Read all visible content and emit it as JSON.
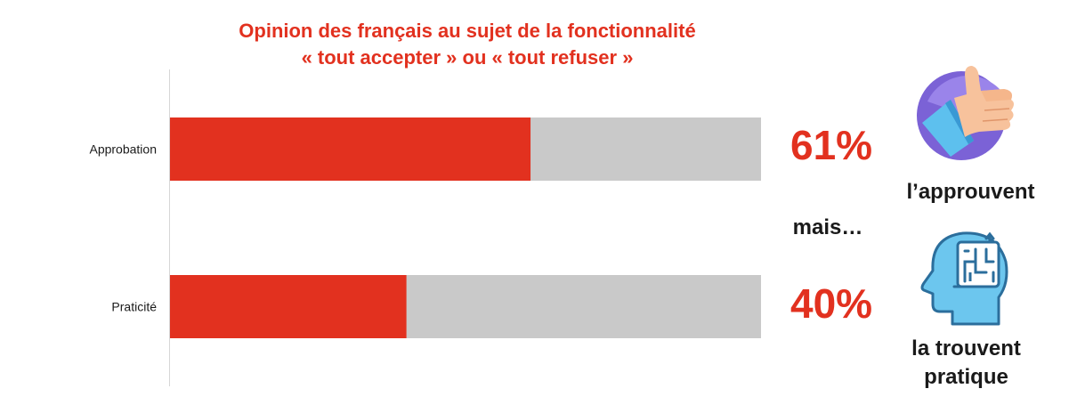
{
  "title_line1": "Opinion des français au sujet de la fonctionnalité",
  "title_line2": "« tout accepter » ou « tout refuser »",
  "colors": {
    "accent": "#e2311f",
    "bar_bg": "#c9c9c9",
    "text": "#1a1a1a"
  },
  "chart_data": {
    "type": "bar",
    "orientation": "horizontal",
    "categories": [
      "Approbation",
      "Praticité"
    ],
    "values": [
      61,
      40
    ],
    "xlim": [
      0,
      100
    ],
    "title": "Opinion des français au sujet de la fonctionnalité « tout accepter » ou « tout refuser »",
    "xlabel": "",
    "ylabel": ""
  },
  "right_panel": {
    "pct1": "61%",
    "caption1": "l’approuvent",
    "connector": "mais…",
    "pct2": "40%",
    "caption2_line1": "la trouvent",
    "caption2_line2": "pratique",
    "icon1": "thumbs-up-icon",
    "icon2": "head-maze-icon"
  }
}
